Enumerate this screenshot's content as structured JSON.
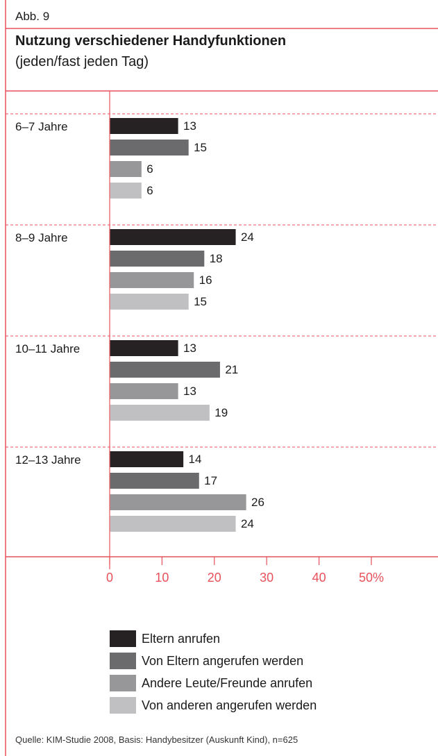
{
  "header": {
    "figure_label": "Abb. 9",
    "title": "Nutzung verschiedener Handyfunktionen",
    "subtitle": "(jeden/fast jeden Tag)"
  },
  "colors": {
    "frame": "#e8505b",
    "series": [
      "#262223",
      "#6b6a6c",
      "#97979a",
      "#c0c0c3"
    ]
  },
  "chart_data": {
    "type": "bar",
    "orientation": "horizontal",
    "categories": [
      "6–7 Jahre",
      "8–9 Jahre",
      "10–11 Jahre",
      "12–13 Jahre"
    ],
    "series": [
      {
        "name": "Eltern anrufen",
        "values": [
          13,
          24,
          13,
          14
        ]
      },
      {
        "name": "Von Eltern angerufen werden",
        "values": [
          15,
          18,
          21,
          17
        ]
      },
      {
        "name": "Andere Leute/Freunde anrufen",
        "values": [
          6,
          16,
          13,
          26
        ]
      },
      {
        "name": "Von anderen angerufen werden",
        "values": [
          6,
          15,
          19,
          24
        ]
      }
    ],
    "xlim": [
      0,
      50
    ],
    "x_ticks": [
      "0",
      "10",
      "20",
      "30",
      "40",
      "50%"
    ],
    "grid": false,
    "legend_position": "bottom"
  },
  "source": "Quelle: KIM-Studie 2008, Basis: Handybesitzer (Auskunft Kind), n=625"
}
